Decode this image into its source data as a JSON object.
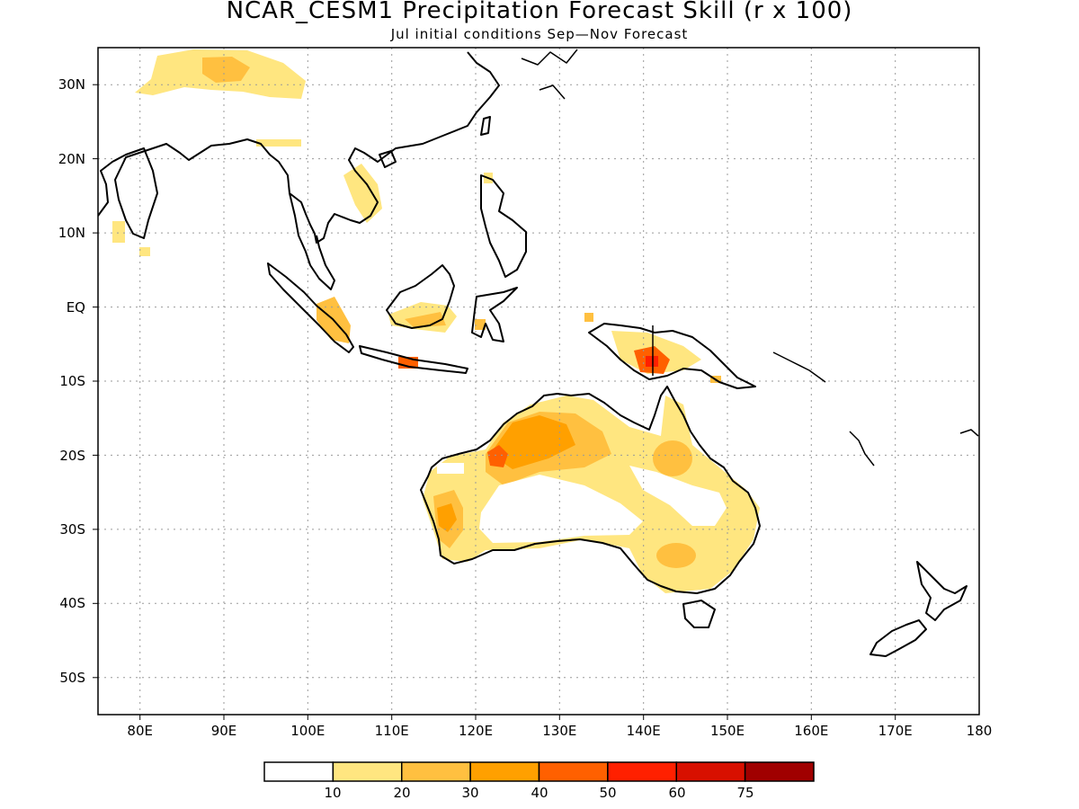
{
  "header": {
    "title": "NCAR_CESM1 Precipitation Forecast Skill (r x 100)",
    "subtitle": "Jul initial conditions  Sep—Nov Forecast"
  },
  "map": {
    "lon_range": [
      75,
      180
    ],
    "lat_range": [
      -55,
      35
    ],
    "lon_labels": [
      "80E",
      "90E",
      "100E",
      "110E",
      "120E",
      "130E",
      "140E",
      "150E",
      "160E",
      "170E",
      "180"
    ],
    "lat_labels": [
      "30N",
      "20N",
      "10N",
      "EQ",
      "10S",
      "20S",
      "30S",
      "40S",
      "50S"
    ],
    "gridlines": "dotted"
  },
  "legend": {
    "colors": [
      "#ffffff",
      "#ffe680",
      "#ffc040",
      "#ffa000",
      "#ff6000",
      "#ff2000",
      "#d81000",
      "#a00000"
    ],
    "labels": [
      "10",
      "20",
      "30",
      "40",
      "50",
      "60",
      "75"
    ]
  }
}
